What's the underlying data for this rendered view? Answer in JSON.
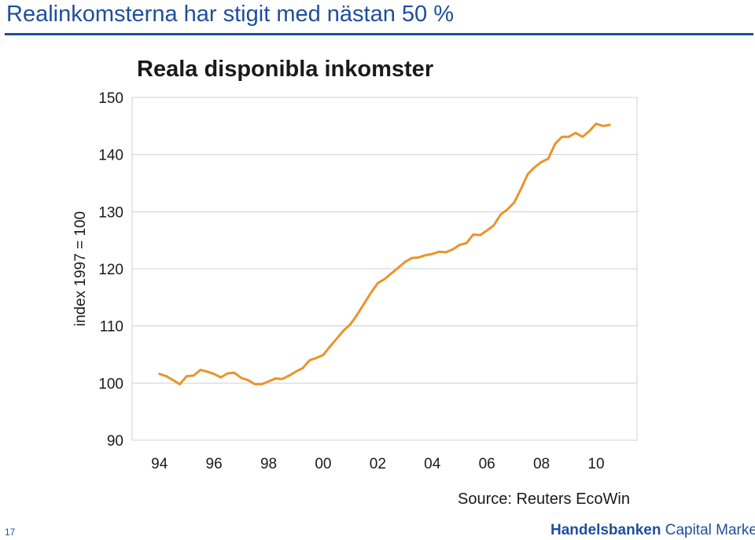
{
  "slide": {
    "title": "Realinkomsterna har stigit med nästan 50 %",
    "page_number": "17",
    "source": "Source: Reuters EcoWin",
    "brand_name": "Handelsbanken",
    "brand_suffix": "Capital Markets",
    "accent_color": "#1f4e9b"
  },
  "chart_data": {
    "type": "line",
    "title": "Reala disponibla inkomster",
    "xlabel": "",
    "ylabel": "index 1997 = 100",
    "ylim": [
      90,
      150
    ],
    "xlim": [
      1993.0,
      2011.5
    ],
    "yticks": [
      90,
      100,
      110,
      120,
      130,
      140,
      150
    ],
    "xticks": [
      {
        "value": 1994,
        "label": "94"
      },
      {
        "value": 1996,
        "label": "96"
      },
      {
        "value": 1998,
        "label": "98"
      },
      {
        "value": 2000,
        "label": "00"
      },
      {
        "value": 2002,
        "label": "02"
      },
      {
        "value": 2004,
        "label": "04"
      },
      {
        "value": 2006,
        "label": "06"
      },
      {
        "value": 2008,
        "label": "08"
      },
      {
        "value": 2010,
        "label": "10"
      }
    ],
    "grid": "horizontal",
    "line_color": "#e8952a",
    "series": [
      {
        "x": [
          1994.0,
          1994.25,
          1994.5,
          1994.75,
          1995.0,
          1995.25,
          1995.5,
          1995.75,
          1996.0,
          1996.25,
          1996.5,
          1996.75,
          1997.0,
          1997.25,
          1997.5,
          1997.75,
          1998.0,
          1998.25,
          1998.5,
          1998.75,
          1999.0,
          1999.25,
          1999.5,
          1999.75,
          2000.0,
          2000.25,
          2000.5,
          2000.75,
          2001.0,
          2001.25,
          2001.5,
          2001.75,
          2002.0,
          2002.25,
          2002.5,
          2002.75,
          2003.0,
          2003.25,
          2003.5,
          2003.75,
          2004.0,
          2004.25,
          2004.5,
          2004.75,
          2005.0,
          2005.25,
          2005.5,
          2005.75,
          2006.0,
          2006.25,
          2006.5,
          2006.75,
          2007.0,
          2007.25,
          2007.5,
          2007.75,
          2008.0,
          2008.25,
          2008.5,
          2008.75,
          2009.0,
          2009.25,
          2009.5,
          2009.75,
          2010.0,
          2010.25,
          2010.5
        ],
        "values": [
          101.6,
          101.2,
          100.5,
          99.8,
          101.2,
          101.3,
          102.3,
          102.0,
          101.6,
          101.0,
          101.7,
          101.8,
          100.9,
          100.5,
          99.8,
          99.8,
          100.3,
          100.8,
          100.7,
          101.3,
          102.0,
          102.6,
          104.0,
          104.4,
          104.9,
          106.4,
          107.8,
          109.2,
          110.3,
          112.0,
          113.9,
          115.8,
          117.5,
          118.2,
          119.2,
          120.2,
          121.2,
          121.9,
          122.0,
          122.4,
          122.6,
          123.0,
          122.9,
          123.4,
          124.2,
          124.5,
          126.0,
          125.9,
          126.7,
          127.6,
          129.5,
          130.4,
          131.6,
          134.0,
          136.6,
          137.8,
          138.7,
          139.3,
          141.9,
          143.1,
          143.1,
          143.8,
          143.1,
          144.1,
          145.4,
          145.0,
          145.2
        ]
      }
    ]
  }
}
